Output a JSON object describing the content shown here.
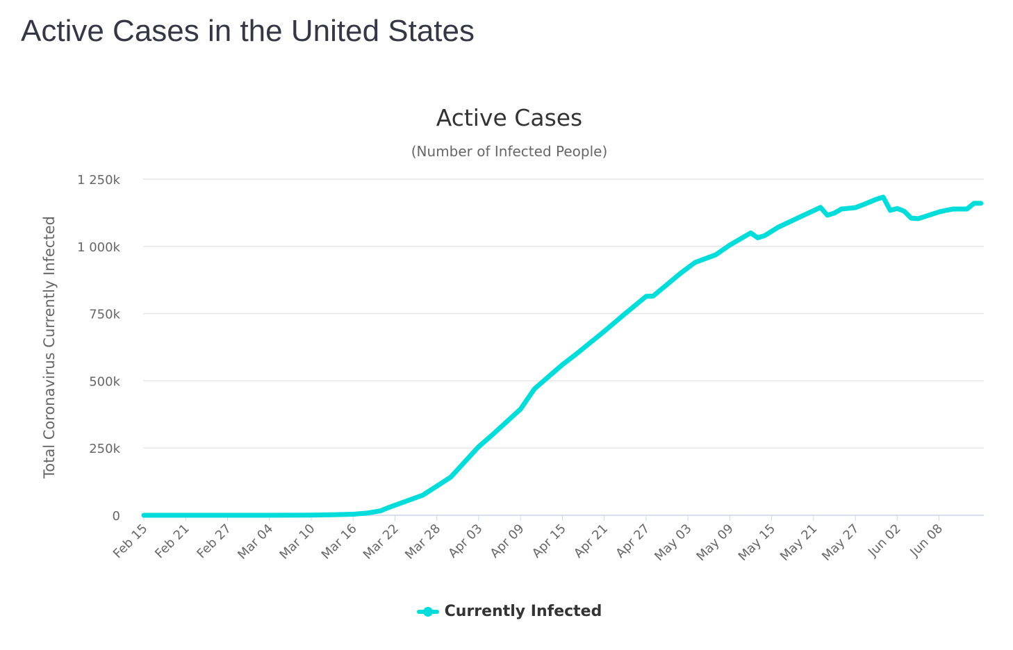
{
  "page_title": "Active Cases in the United States",
  "chart_data": {
    "type": "line",
    "title": "Active Cases",
    "subtitle": "(Number of Infected People)",
    "xlabel": "",
    "ylabel": "Total Coronavirus Currently Infected",
    "ylim": [
      0,
      1250000
    ],
    "yticks": [
      0,
      250000,
      500000,
      750000,
      1000000,
      1250000
    ],
    "ytick_labels": [
      "0",
      "250k",
      "500k",
      "750k",
      "1 000k",
      "1 250k"
    ],
    "xticks": [
      "Feb 15",
      "Feb 21",
      "Feb 27",
      "Mar 04",
      "Mar 10",
      "Mar 16",
      "Mar 22",
      "Mar 28",
      "Apr 03",
      "Apr 09",
      "Apr 15",
      "Apr 21",
      "Apr 27",
      "May 03",
      "May 09",
      "May 15",
      "May 21",
      "May 27",
      "Jun 02",
      "Jun 08"
    ],
    "grid": true,
    "legend_position": "bottom",
    "series": [
      {
        "name": "Currently Infected",
        "color": "#00dcd9",
        "points": [
          [
            "Feb 15",
            10
          ],
          [
            "Mar 01",
            60
          ],
          [
            "Mar 07",
            350
          ],
          [
            "Mar 10",
            800
          ],
          [
            "Mar 13",
            2000
          ],
          [
            "Mar 16",
            4000
          ],
          [
            "Mar 18",
            8000
          ],
          [
            "Mar 20",
            17000
          ],
          [
            "Mar 21",
            28000
          ],
          [
            "Mar 26",
            75000
          ],
          [
            "Mar 30",
            142000
          ],
          [
            "Apr 03",
            255000
          ],
          [
            "Apr 05",
            300000
          ],
          [
            "Apr 09",
            395000
          ],
          [
            "Apr 11",
            470000
          ],
          [
            "Apr 15",
            560000
          ],
          [
            "Apr 17",
            600000
          ],
          [
            "Apr 21",
            684000
          ],
          [
            "Apr 24",
            750000
          ],
          [
            "Apr 27",
            814000
          ],
          [
            "Apr 28",
            815000
          ],
          [
            "May 02",
            901000
          ],
          [
            "May 04",
            940000
          ],
          [
            "May 07",
            969000
          ],
          [
            "May 09",
            1005000
          ],
          [
            "May 12",
            1050000
          ],
          [
            "May 13",
            1032000
          ],
          [
            "May 14",
            1040000
          ],
          [
            "May 16",
            1072000
          ],
          [
            "May 22",
            1145000
          ],
          [
            "May 23",
            1116000
          ],
          [
            "May 24",
            1124000
          ],
          [
            "May 25",
            1139000
          ],
          [
            "May 27",
            1144000
          ],
          [
            "May 28",
            1154000
          ],
          [
            "May 30",
            1175000
          ],
          [
            "May 31",
            1183000
          ],
          [
            "Jun 01",
            1134000
          ],
          [
            "Jun 02",
            1141000
          ],
          [
            "Jun 03",
            1131000
          ],
          [
            "Jun 04",
            1105000
          ],
          [
            "Jun 05",
            1103000
          ],
          [
            "Jun 08",
            1128000
          ],
          [
            "Jun 09",
            1134000
          ],
          [
            "Jun 10",
            1139000
          ],
          [
            "Jun 12",
            1139000
          ],
          [
            "Jun 13",
            1160000
          ],
          [
            "Jun 14",
            1160000
          ]
        ]
      }
    ]
  }
}
